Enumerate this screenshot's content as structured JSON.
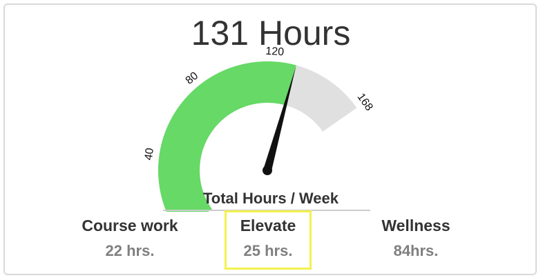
{
  "headline": "131 Hours",
  "gauge": {
    "value": 131,
    "min": 0,
    "max": 168,
    "ticks": [
      "0",
      "40",
      "80",
      "120",
      "168"
    ],
    "subtitle": "Total Hours / Week",
    "colors": {
      "fill": "#66d966",
      "track": "#e0e0e0",
      "needle": "#111111"
    }
  },
  "stats": {
    "course": {
      "label": "Course work",
      "value": "22 hrs."
    },
    "elevate": {
      "label": "Elevate",
      "value": "25 hrs."
    },
    "wellness": {
      "label": "Wellness",
      "value": "84hrs."
    }
  },
  "highlight_color": "#f2f24d"
}
